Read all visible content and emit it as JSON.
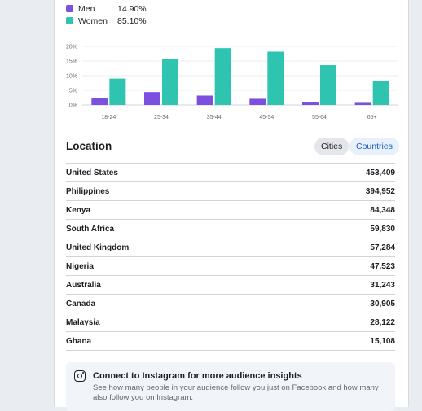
{
  "gender_legend": [
    {
      "label": "Men",
      "value": "14.90%",
      "color": "#7b4fe0"
    },
    {
      "label": "Women",
      "value": "85.10%",
      "color": "#2ec4b0"
    }
  ],
  "chart_data": {
    "type": "bar",
    "categories": [
      "18-24",
      "25-34",
      "35-44",
      "45-54",
      "55-64",
      "65+"
    ],
    "series": [
      {
        "name": "Men",
        "values": [
          2.4,
          4.4,
          3.2,
          2.1,
          1.1,
          1.0
        ],
        "color": "#7b4fe0"
      },
      {
        "name": "Women",
        "values": [
          9.0,
          15.8,
          19.4,
          18.2,
          13.6,
          8.3
        ],
        "color": "#2ec4b0"
      }
    ],
    "yticks": [
      "0%",
      "5%",
      "10%",
      "15%",
      "20%"
    ],
    "ylim": [
      0,
      20
    ],
    "grid": true
  },
  "location": {
    "title": "Location",
    "cities_label": "Cities",
    "countries_label": "Countries",
    "rows": [
      {
        "name": "United States",
        "value": "453,409"
      },
      {
        "name": "Philippines",
        "value": "394,952"
      },
      {
        "name": "Kenya",
        "value": "84,348"
      },
      {
        "name": "South Africa",
        "value": "59,830"
      },
      {
        "name": "United Kingdom",
        "value": "57,284"
      },
      {
        "name": "Nigeria",
        "value": "47,523"
      },
      {
        "name": "Australia",
        "value": "31,243"
      },
      {
        "name": "Canada",
        "value": "30,905"
      },
      {
        "name": "Malaysia",
        "value": "28,122"
      },
      {
        "name": "Ghana",
        "value": "15,108"
      }
    ]
  },
  "insight": {
    "icon": "instagram-icon",
    "title": "Connect to Instagram for more audience insights",
    "description": "See how many people in your audience follow you just on Facebook and how many also follow you on Instagram."
  }
}
